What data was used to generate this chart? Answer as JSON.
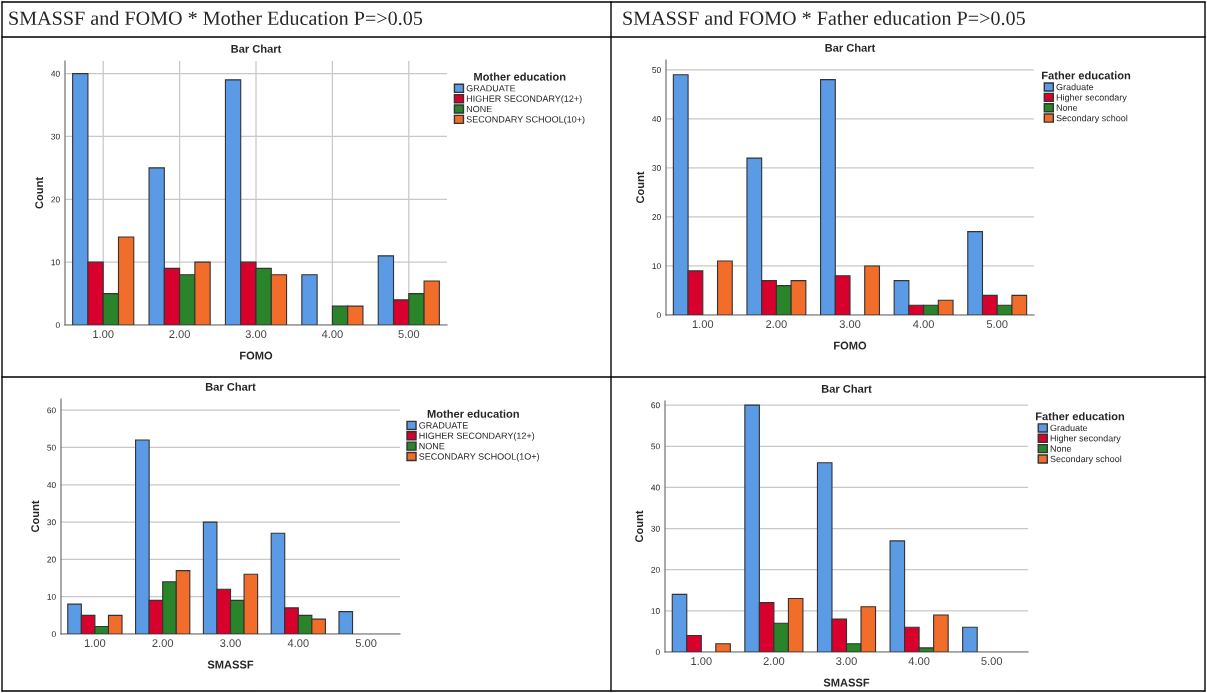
{
  "chart_data": [
    {
      "type": "bar",
      "title": "Bar Chart",
      "annotations": [
        "SMASSF and FOMO * Mother Education P=>0.05"
      ],
      "xlabel": "FOMO",
      "ylabel": "Count",
      "legend_title": "Mother education",
      "legend": "right",
      "grid": true,
      "ylim": [
        0,
        42
      ],
      "yticks": [
        0,
        10,
        20,
        30,
        40
      ],
      "categories": [
        "1.00",
        "2.00",
        "3.00",
        "4.00",
        "5.00"
      ],
      "series": [
        {
          "name": "GRADUATE",
          "color": "#5b9be6",
          "values": [
            40,
            25,
            39,
            8,
            11
          ]
        },
        {
          "name": "HIGHER SECONDARY(12+)",
          "color": "#d8002c",
          "values": [
            10,
            9,
            10,
            null,
            4
          ]
        },
        {
          "name": "NONE",
          "color": "#2a852a",
          "values": [
            5,
            8,
            9,
            3,
            5
          ]
        },
        {
          "name": "SECONDARY SCHOOL(10+)",
          "color": "#f26c2a",
          "values": [
            14,
            10,
            8,
            3,
            7
          ]
        }
      ]
    },
    {
      "type": "bar",
      "title": "Bar Chart",
      "annotations": [
        "SMASSF and FOMO * Father education P=>0.05"
      ],
      "xlabel": "FOMO",
      "ylabel": "Count",
      "legend_title": "Father education",
      "legend": "right",
      "grid": "y",
      "ylim": [
        0,
        52
      ],
      "yticks": [
        0,
        10,
        20,
        30,
        40,
        50
      ],
      "categories": [
        "1.00",
        "2.00",
        "3.00",
        "4.00",
        "5.00"
      ],
      "series": [
        {
          "name": "Graduate",
          "color": "#5b9be6",
          "values": [
            49,
            32,
            48,
            7,
            17
          ]
        },
        {
          "name": "Higher secondary",
          "color": "#d8002c",
          "values": [
            9,
            7,
            8,
            2,
            4
          ]
        },
        {
          "name": "None",
          "color": "#2a852a",
          "values": [
            null,
            6,
            null,
            2,
            2
          ]
        },
        {
          "name": "Secondary school",
          "color": "#f26c2a",
          "values": [
            11,
            7,
            10,
            3,
            4
          ]
        }
      ]
    },
    {
      "type": "bar",
      "title": "Bar Chart",
      "xlabel": "SMASSF",
      "ylabel": "Count",
      "legend_title": "Mother education",
      "legend": "right",
      "grid": "y",
      "ylim": [
        0,
        63
      ],
      "yticks": [
        0,
        10,
        20,
        30,
        40,
        50,
        60
      ],
      "categories": [
        "1.00",
        "2.00",
        "3.00",
        "4.00",
        "5.00"
      ],
      "series": [
        {
          "name": "GRADUATE",
          "color": "#5b9be6",
          "values": [
            8,
            52,
            30,
            27,
            6
          ]
        },
        {
          "name": "HIGHER SECONDARY(12+)",
          "color": "#d8002c",
          "values": [
            5,
            9,
            12,
            7,
            null
          ]
        },
        {
          "name": "NONE",
          "color": "#2a852a",
          "values": [
            2,
            14,
            9,
            5,
            null
          ]
        },
        {
          "name": "SECONDARY SCHOOL(1O+)",
          "color": "#f26c2a",
          "values": [
            5,
            17,
            16,
            4,
            null
          ]
        }
      ]
    },
    {
      "type": "bar",
      "title": "Bar Chart",
      "xlabel": "SMASSF",
      "ylabel": "Count",
      "legend_title": "Father education",
      "legend": "right",
      "grid": "y",
      "ylim": [
        0,
        61
      ],
      "yticks": [
        0,
        10,
        20,
        30,
        40,
        50,
        60
      ],
      "categories": [
        "1.00",
        "2.00",
        "3.00",
        "4.00",
        "5.00"
      ],
      "series": [
        {
          "name": "Graduate",
          "color": "#5b9be6",
          "values": [
            14,
            60,
            46,
            27,
            6
          ]
        },
        {
          "name": "Higher secondary",
          "color": "#d8002c",
          "values": [
            4,
            12,
            8,
            6,
            null
          ]
        },
        {
          "name": "None",
          "color": "#2a852a",
          "values": [
            null,
            7,
            2,
            1,
            null
          ]
        },
        {
          "name": "Secondary school",
          "color": "#f26c2a",
          "values": [
            2,
            13,
            11,
            9,
            null
          ]
        }
      ]
    }
  ]
}
